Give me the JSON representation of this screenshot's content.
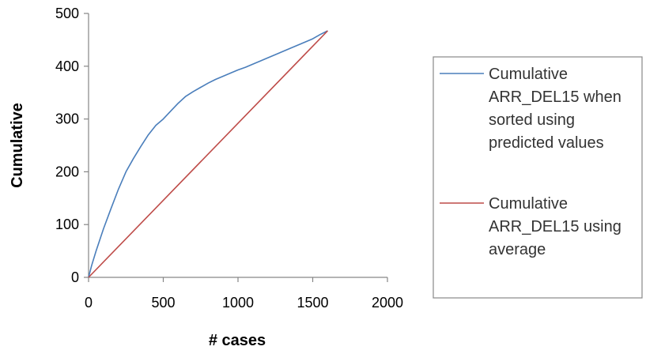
{
  "chart_data": {
    "type": "line",
    "title": "",
    "xlabel": "# cases",
    "ylabel": "Cumulative",
    "xlim": [
      0,
      2000
    ],
    "ylim": [
      0,
      500
    ],
    "x_ticks": [
      "0",
      "500",
      "1000",
      "1500",
      "2000"
    ],
    "y_ticks": [
      "0",
      "100",
      "200",
      "300",
      "400",
      "500"
    ],
    "grid": false,
    "legend_position": "right",
    "series": [
      {
        "name": "Cumulative ARR_DEL15 when sorted using predicted values",
        "legend_lines": [
          "Cumulative",
          "ARR_DEL15 when",
          "sorted using",
          "predicted values"
        ],
        "color": "#4a7ebb",
        "x": [
          0,
          20,
          50,
          100,
          150,
          200,
          250,
          300,
          350,
          400,
          450,
          500,
          550,
          600,
          650,
          700,
          750,
          800,
          850,
          900,
          950,
          1000,
          1050,
          1100,
          1150,
          1200,
          1250,
          1300,
          1350,
          1400,
          1450,
          1500,
          1550,
          1600
        ],
        "y": [
          0,
          22,
          50,
          92,
          130,
          167,
          200,
          225,
          248,
          270,
          288,
          300,
          315,
          330,
          343,
          352,
          360,
          368,
          375,
          381,
          387,
          393,
          398,
          404,
          410,
          416,
          422,
          428,
          434,
          440,
          446,
          452,
          460,
          467
        ]
      },
      {
        "name": "Cumulative ARR_DEL15 using average",
        "legend_lines": [
          "Cumulative",
          "ARR_DEL15 using",
          "average"
        ],
        "color": "#be4b48",
        "x": [
          0,
          1600
        ],
        "y": [
          0,
          467
        ]
      }
    ]
  }
}
